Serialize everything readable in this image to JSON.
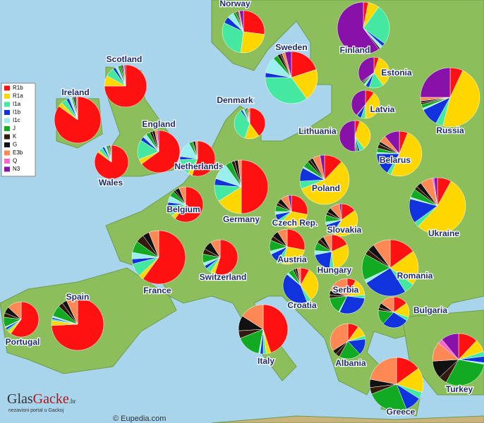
{
  "chart_data": {
    "type": "pie",
    "legend": [
      {
        "name": "R1b",
        "color": "#ff1111"
      },
      {
        "name": "R1a",
        "color": "#ffd700"
      },
      {
        "name": "I1a",
        "color": "#44e8a0"
      },
      {
        "name": "I1b",
        "color": "#1133dd"
      },
      {
        "name": "I1c",
        "color": "#99eeee"
      },
      {
        "name": "J",
        "color": "#11aa22"
      },
      {
        "name": "K",
        "color": "#331a0a"
      },
      {
        "name": "G",
        "color": "#111111"
      },
      {
        "name": "E3b",
        "color": "#ff8855"
      },
      {
        "name": "Q",
        "color": "#ff66cc"
      },
      {
        "name": "N3",
        "color": "#8811aa"
      }
    ],
    "countries": [
      {
        "name": "Norway",
        "values": [
          27,
          25,
          30,
          5,
          5,
          2,
          1,
          1,
          1,
          0,
          3
        ]
      },
      {
        "name": "Sweden",
        "values": [
          20,
          20,
          35,
          3,
          10,
          3,
          2,
          1,
          2,
          0,
          4
        ]
      },
      {
        "name": "Finland",
        "values": [
          3,
          7,
          25,
          2,
          2,
          0,
          1,
          0,
          0,
          0,
          60
        ]
      },
      {
        "name": "Scotland",
        "values": [
          75,
          8,
          7,
          2,
          2,
          2,
          1,
          1,
          1,
          0,
          1
        ]
      },
      {
        "name": "Ireland",
        "values": [
          85,
          3,
          4,
          2,
          2,
          1,
          1,
          1,
          1,
          0,
          0
        ]
      },
      {
        "name": "Estonia",
        "values": [
          5,
          35,
          15,
          4,
          2,
          2,
          1,
          1,
          0,
          0,
          35
        ]
      },
      {
        "name": "Russia",
        "values": [
          7,
          47,
          4,
          10,
          1,
          2,
          1,
          1,
          2,
          0,
          25
        ]
      },
      {
        "name": "Latvia",
        "values": [
          10,
          40,
          5,
          5,
          0,
          1,
          0,
          0,
          0,
          0,
          39
        ]
      },
      {
        "name": "Denmark",
        "values": [
          40,
          15,
          35,
          2,
          2,
          2,
          1,
          1,
          2,
          0,
          0
        ]
      },
      {
        "name": "Lithuania",
        "values": [
          5,
          35,
          5,
          2,
          0,
          2,
          1,
          0,
          0,
          0,
          50
        ]
      },
      {
        "name": "England",
        "values": [
          65,
          4,
          15,
          3,
          3,
          3,
          2,
          2,
          2,
          0,
          1
        ]
      },
      {
        "name": "Wales",
        "values": [
          85,
          2,
          4,
          2,
          2,
          2,
          1,
          1,
          1,
          0,
          0
        ]
      },
      {
        "name": "Netherlands",
        "values": [
          55,
          4,
          15,
          3,
          15,
          3,
          1,
          2,
          2,
          0,
          0
        ]
      },
      {
        "name": "Belarus",
        "values": [
          6,
          50,
          3,
          16,
          1,
          3,
          3,
          2,
          5,
          0,
          11
        ]
      },
      {
        "name": "Germany",
        "values": [
          50,
          16,
          10,
          4,
          10,
          4,
          2,
          2,
          2,
          0,
          0
        ]
      },
      {
        "name": "Poland",
        "values": [
          12,
          57,
          5,
          9,
          1,
          4,
          2,
          2,
          5,
          0,
          3
        ]
      },
      {
        "name": "Belgium",
        "values": [
          60,
          4,
          10,
          3,
          6,
          5,
          2,
          4,
          6,
          0,
          0
        ]
      },
      {
        "name": "Czech Rep.",
        "values": [
          28,
          34,
          4,
          6,
          3,
          6,
          3,
          5,
          8,
          0,
          3
        ]
      },
      {
        "name": "Slovakia",
        "values": [
          15,
          42,
          3,
          10,
          3,
          7,
          3,
          5,
          10,
          0,
          2
        ]
      },
      {
        "name": "Ukraine",
        "values": [
          8,
          54,
          3,
          14,
          1,
          5,
          2,
          3,
          7,
          1,
          2
        ]
      },
      {
        "name": "France",
        "values": [
          60,
          3,
          8,
          3,
          4,
          7,
          5,
          4,
          6,
          0,
          0
        ]
      },
      {
        "name": "Switzerland",
        "values": [
          55,
          4,
          5,
          3,
          3,
          8,
          5,
          8,
          9,
          0,
          0
        ]
      },
      {
        "name": "Austria",
        "values": [
          28,
          26,
          6,
          8,
          3,
          10,
          4,
          6,
          9,
          0,
          0
        ]
      },
      {
        "name": "Hungary",
        "values": [
          18,
          30,
          4,
          20,
          4,
          8,
          4,
          4,
          8,
          0,
          0
        ]
      },
      {
        "name": "Romania",
        "values": [
          15,
          20,
          6,
          25,
          2,
          15,
          3,
          4,
          10,
          0,
          0
        ]
      },
      {
        "name": "Croatia",
        "values": [
          8,
          32,
          4,
          42,
          2,
          5,
          2,
          2,
          3,
          0,
          0
        ]
      },
      {
        "name": "Serbia",
        "values": [
          8,
          16,
          3,
          30,
          1,
          15,
          3,
          4,
          20,
          0,
          0
        ]
      },
      {
        "name": "Bulgaria",
        "values": [
          15,
          15,
          4,
          28,
          0,
          15,
          3,
          5,
          15,
          0,
          0
        ]
      },
      {
        "name": "Spain",
        "values": [
          75,
          3,
          1,
          1,
          1,
          7,
          3,
          3,
          7,
          0,
          0
        ]
      },
      {
        "name": "Portugal",
        "values": [
          60,
          3,
          2,
          2,
          1,
          9,
          4,
          6,
          13,
          0,
          0
        ]
      },
      {
        "name": "Italy",
        "values": [
          45,
          3,
          2,
          2,
          1,
          16,
          5,
          10,
          16,
          0,
          0
        ]
      },
      {
        "name": "Albania",
        "values": [
          10,
          10,
          3,
          15,
          0,
          20,
          4,
          4,
          34,
          0,
          0
        ]
      },
      {
        "name": "Greece",
        "values": [
          15,
          15,
          4,
          10,
          0,
          25,
          4,
          5,
          22,
          0,
          0
        ]
      },
      {
        "name": "Turkey",
        "values": [
          12,
          8,
          3,
          4,
          1,
          30,
          5,
          11,
          12,
          3,
          11
        ]
      }
    ],
    "logo": {
      "title_a": "Glas",
      "title_b": "Gacke",
      "domain": ".hr",
      "tagline": "nezavisni portal u Gackoj"
    },
    "source": "© Eupedia.com"
  }
}
